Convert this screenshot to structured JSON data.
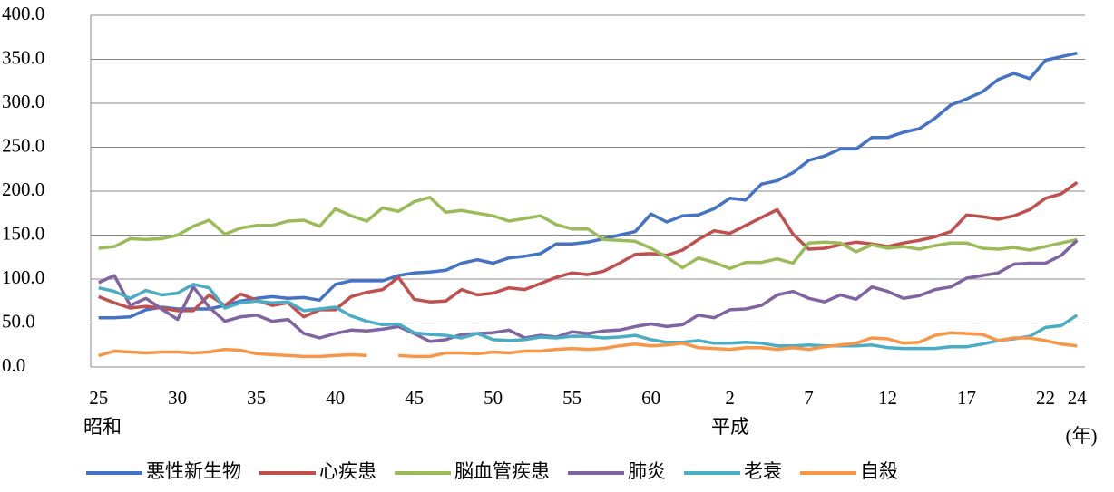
{
  "chart_data": {
    "type": "line",
    "categories": [
      "25",
      null,
      null,
      null,
      null,
      "30",
      null,
      null,
      null,
      null,
      "35",
      null,
      null,
      null,
      null,
      "40",
      null,
      null,
      null,
      null,
      "45",
      null,
      null,
      null,
      null,
      "50",
      null,
      null,
      null,
      null,
      "55",
      null,
      null,
      null,
      null,
      "60",
      null,
      null,
      null,
      null,
      "2",
      null,
      null,
      null,
      null,
      "7",
      null,
      null,
      null,
      null,
      "12",
      null,
      null,
      null,
      null,
      "17",
      null,
      null,
      null,
      null,
      "22",
      null,
      "24"
    ],
    "era_labels": [
      "昭和",
      "平成"
    ],
    "x_unit": "(年)",
    "ylim": [
      0,
      400
    ],
    "yticks": [
      {
        "value": 0,
        "label": "0.0"
      },
      {
        "value": 50,
        "label": "50.0"
      },
      {
        "value": 100,
        "label": "100.0"
      },
      {
        "value": 150,
        "label": "150.0"
      },
      {
        "value": 200,
        "label": "200.0"
      },
      {
        "value": 250,
        "label": "250.0"
      },
      {
        "value": 300,
        "label": "300.0"
      },
      {
        "value": 350,
        "label": "350.0"
      },
      {
        "value": 400,
        "label": "400.0"
      }
    ],
    "grid": true,
    "legend": "bottom",
    "series": [
      {
        "name": "悪性新生物",
        "color": "#4472c4",
        "values": [
          56,
          56,
          57,
          65,
          68,
          66,
          66,
          66,
          70,
          75,
          78,
          80,
          78,
          79,
          76,
          94,
          98,
          98,
          98,
          104,
          107,
          108,
          110,
          118,
          122,
          118,
          124,
          126,
          129,
          140,
          140,
          142,
          146,
          150,
          154,
          174,
          165,
          172,
          173,
          180,
          192,
          190,
          208,
          212,
          221,
          235,
          240,
          248,
          248,
          261,
          261,
          267,
          271,
          283,
          298,
          305,
          313,
          327,
          334,
          328,
          349,
          353,
          357
        ]
      },
      {
        "name": "心疾患",
        "color": "#c0504d",
        "values": [
          80,
          73,
          67,
          69,
          67,
          64,
          64,
          82,
          70,
          83,
          76,
          70,
          73,
          57,
          65,
          65,
          80,
          85,
          88,
          102,
          77,
          74,
          75,
          88,
          82,
          84,
          90,
          88,
          95,
          102,
          107,
          105,
          109,
          118,
          128,
          129,
          127,
          133,
          145,
          155,
          152,
          161,
          170,
          179,
          151,
          134,
          135,
          139,
          142,
          140,
          137,
          141,
          144,
          148,
          154,
          173,
          171,
          168,
          172,
          179,
          192,
          197,
          210
        ]
      },
      {
        "name": "脳血管疾患",
        "color": "#9bbb59",
        "values": [
          135,
          137,
          146,
          145,
          146,
          150,
          160,
          167,
          151,
          158,
          161,
          161,
          166,
          167,
          160,
          180,
          172,
          166,
          181,
          177,
          188,
          193,
          176,
          178,
          175,
          172,
          166,
          169,
          172,
          162,
          157,
          157,
          145,
          144,
          143,
          135,
          125,
          113,
          124,
          119,
          112,
          119,
          119,
          123,
          118,
          141,
          142,
          141,
          131,
          139,
          135,
          137,
          134,
          138,
          141,
          141,
          135,
          134,
          136,
          133,
          137,
          141,
          145
        ]
      },
      {
        "name": "肺炎",
        "color": "#8064a2",
        "values": [
          96,
          104,
          70,
          78,
          66,
          54,
          91,
          68,
          52,
          57,
          59,
          52,
          54,
          38,
          33,
          38,
          42,
          41,
          43,
          46,
          38,
          29,
          31,
          37,
          38,
          39,
          42,
          33,
          36,
          34,
          40,
          38,
          41,
          42,
          46,
          49,
          46,
          48,
          59,
          56,
          65,
          66,
          70,
          82,
          86,
          78,
          74,
          82,
          77,
          91,
          86,
          78,
          81,
          88,
          91,
          101,
          104,
          107,
          117,
          118,
          118,
          127,
          144
        ]
      },
      {
        "name": "老衰",
        "color": "#4bacc6",
        "values": [
          90,
          86,
          78,
          87,
          82,
          84,
          94,
          90,
          67,
          73,
          75,
          73,
          74,
          64,
          66,
          68,
          58,
          52,
          48,
          49,
          39,
          37,
          36,
          33,
          38,
          31,
          30,
          31,
          34,
          33,
          35,
          35,
          33,
          34,
          36,
          31,
          28,
          28,
          30,
          27,
          27,
          28,
          27,
          24,
          24,
          25,
          24,
          24,
          24,
          25,
          22,
          21,
          21,
          21,
          23,
          23,
          26,
          30,
          32,
          35,
          45,
          47,
          59
        ]
      },
      {
        "name": "自殺",
        "color": "#f79646",
        "values": [
          13,
          18,
          17,
          16,
          17,
          17,
          16,
          17,
          20,
          19,
          15,
          14,
          13,
          12,
          12,
          13,
          14,
          13,
          null,
          13,
          12,
          12,
          16,
          16,
          15,
          17,
          16,
          18,
          18,
          20,
          21,
          20,
          21,
          24,
          26,
          24,
          25,
          27,
          22,
          21,
          20,
          22,
          22,
          20,
          22,
          20,
          23,
          25,
          27,
          33,
          32,
          27,
          28,
          36,
          39,
          38,
          37,
          30,
          33,
          33,
          30,
          26,
          24
        ]
      }
    ]
  }
}
